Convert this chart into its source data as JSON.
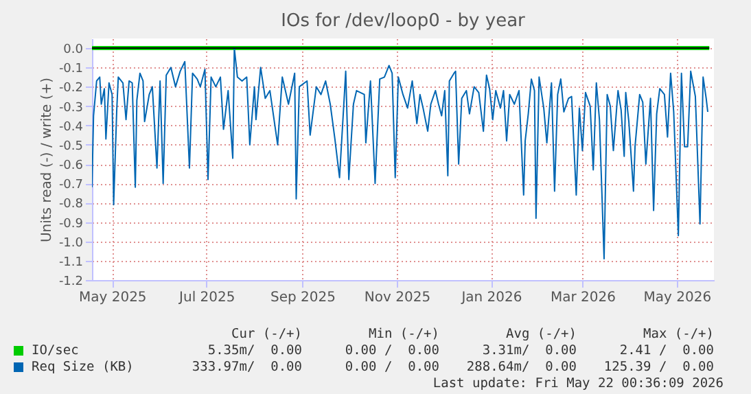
{
  "chart_data": {
    "type": "line",
    "title": "IOs for /dev/loop0 - by year",
    "ylabel": "Units read (-) / write (+)",
    "xlim": [
      "2025-04-18",
      "2026-05-25"
    ],
    "xticks": [
      {
        "value": "2025-05-01",
        "label": "May 2025"
      },
      {
        "value": "2025-07-01",
        "label": "Jul 2025"
      },
      {
        "value": "2025-09-01",
        "label": "Sep 2025"
      },
      {
        "value": "2025-11-01",
        "label": "Nov 2025"
      },
      {
        "value": "2026-01-01",
        "label": "Jan 2026"
      },
      {
        "value": "2026-03-01",
        "label": "Mar 2026"
      },
      {
        "value": "2026-05-01",
        "label": "May 2026"
      }
    ],
    "ylim": [
      -1.2,
      0.05
    ],
    "yticks": [
      {
        "value": 0,
        "label": "0.0"
      },
      -0.1,
      -0.2,
      -0.3,
      -0.4,
      -0.5,
      -0.6,
      -0.7,
      -0.8,
      -0.9,
      {
        "value": -1,
        "label": "-1.0"
      },
      -1.1,
      -1.2
    ],
    "grid": true,
    "legend": "bottom",
    "series": [
      {
        "name": "IO/sec",
        "color": "#00cc00",
        "x": [
          "2025-04-18",
          "2026-05-22"
        ],
        "values": [
          0,
          0
        ]
      },
      {
        "name": "Req Size (KB)",
        "color": "#0066b3",
        "x": [
          "2025-04-18",
          "2025-04-19",
          "2025-04-21",
          "2025-04-23",
          "2025-04-24",
          "2025-04-26",
          "2025-04-27",
          "2025-04-29",
          "2025-05-01",
          "2025-05-02",
          "2025-05-04",
          "2025-05-05",
          "2025-05-08",
          "2025-05-10",
          "2025-05-12",
          "2025-05-14",
          "2025-05-16",
          "2025-05-17",
          "2025-05-19",
          "2025-05-21",
          "2025-05-22",
          "2025-05-25",
          "2025-05-27",
          "2025-05-30",
          "2025-06-01",
          "2025-06-03",
          "2025-06-05",
          "2025-06-08",
          "2025-06-11",
          "2025-06-14",
          "2025-06-17",
          "2025-06-20",
          "2025-06-22",
          "2025-06-25",
          "2025-06-27",
          "2025-06-30",
          "2025-07-02",
          "2025-07-04",
          "2025-07-07",
          "2025-07-10",
          "2025-07-12",
          "2025-07-15",
          "2025-07-18",
          "2025-07-19",
          "2025-07-21",
          "2025-07-24",
          "2025-07-27",
          "2025-07-29",
          "2025-08-01",
          "2025-08-02",
          "2025-08-05",
          "2025-08-08",
          "2025-08-11",
          "2025-08-16",
          "2025-08-19",
          "2025-08-23",
          "2025-08-27",
          "2025-08-28",
          "2025-08-30",
          "2025-09-04",
          "2025-09-06",
          "2025-09-10",
          "2025-09-13",
          "2025-09-16",
          "2025-09-19",
          "2025-09-22",
          "2025-09-25",
          "2025-09-28",
          "2025-09-29",
          "2025-10-01",
          "2025-10-04",
          "2025-10-06",
          "2025-10-11",
          "2025-10-12",
          "2025-10-15",
          "2025-10-18",
          "2025-10-21",
          "2025-10-24",
          "2025-10-27",
          "2025-10-29",
          "2025-10-31",
          "2025-11-02",
          "2025-11-05",
          "2025-11-08",
          "2025-11-11",
          "2025-11-14",
          "2025-11-16",
          "2025-11-18",
          "2025-11-21",
          "2025-11-23",
          "2025-11-26",
          "2025-11-28",
          "2025-11-30",
          "2025-12-02",
          "2025-12-04",
          "2025-12-05",
          "2025-12-08",
          "2025-12-09",
          "2025-12-11",
          "2025-12-13",
          "2025-12-16",
          "2025-12-18",
          "2025-12-21",
          "2025-12-24",
          "2025-12-27",
          "2025-12-29",
          "2025-12-31",
          "2026-01-02",
          "2026-01-04",
          "2026-01-07",
          "2026-01-09",
          "2026-01-11",
          "2026-01-13",
          "2026-01-16",
          "2026-01-19",
          "2026-01-22",
          "2026-01-23",
          "2026-01-25",
          "2026-01-27",
          "2026-01-29",
          "2026-01-30",
          "2026-02-01",
          "2026-02-04",
          "2026-02-06",
          "2026-02-09",
          "2026-02-11",
          "2026-02-13",
          "2026-02-15",
          "2026-02-17",
          "2026-02-20",
          "2026-02-22",
          "2026-02-25",
          "2026-02-27",
          "2026-03-01",
          "2026-03-03",
          "2026-03-06",
          "2026-03-08",
          "2026-03-10",
          "2026-03-12",
          "2026-03-15",
          "2026-03-17",
          "2026-03-19",
          "2026-03-21",
          "2026-03-24",
          "2026-03-26",
          "2026-03-28",
          "2026-03-29",
          "2026-03-31",
          "2026-04-03",
          "2026-04-04",
          "2026-04-07",
          "2026-04-09",
          "2026-04-11",
          "2026-04-14",
          "2026-04-16",
          "2026-04-18",
          "2026-04-20",
          "2026-04-23",
          "2026-04-25",
          "2026-04-27",
          "2026-04-29",
          "2026-05-02",
          "2026-05-04",
          "2026-05-06",
          "2026-05-08",
          "2026-05-10",
          "2026-05-13",
          "2026-05-16",
          "2026-05-18",
          "2026-05-20",
          "2026-05-21"
        ],
        "values": [
          -0.72,
          -0.35,
          -0.17,
          -0.15,
          -0.29,
          -0.21,
          -0.47,
          -0.18,
          -0.24,
          -0.81,
          -0.32,
          -0.15,
          -0.18,
          -0.37,
          -0.17,
          -0.18,
          -0.72,
          -0.27,
          -0.13,
          -0.17,
          -0.38,
          -0.24,
          -0.2,
          -0.62,
          -0.17,
          -0.7,
          -0.14,
          -0.1,
          -0.2,
          -0.12,
          -0.07,
          -0.62,
          -0.13,
          -0.16,
          -0.2,
          -0.11,
          -0.68,
          -0.15,
          -0.2,
          -0.15,
          -0.42,
          -0.22,
          -0.57,
          0,
          -0.15,
          -0.17,
          -0.15,
          -0.5,
          -0.2,
          -0.37,
          -0.1,
          -0.26,
          -0.22,
          -0.5,
          -0.15,
          -0.29,
          -0.13,
          -0.78,
          -0.2,
          -0.17,
          -0.45,
          -0.2,
          -0.24,
          -0.17,
          -0.29,
          -0.47,
          -0.67,
          -0.26,
          -0.12,
          -0.68,
          -0.29,
          -0.22,
          -0.24,
          -0.49,
          -0.17,
          -0.7,
          -0.16,
          -0.15,
          -0.09,
          -0.13,
          -0.67,
          -0.15,
          -0.24,
          -0.31,
          -0.17,
          -0.39,
          -0.24,
          -0.31,
          -0.43,
          -0.29,
          -0.22,
          -0.29,
          -0.35,
          -0.22,
          -0.66,
          -0.17,
          -0.13,
          -0.12,
          -0.6,
          -0.26,
          -0.22,
          -0.34,
          -0.2,
          -0.23,
          -0.43,
          -0.14,
          -0.21,
          -0.37,
          -0.22,
          -0.31,
          -0.22,
          -0.48,
          -0.24,
          -0.29,
          -0.22,
          -0.76,
          -0.48,
          -0.34,
          -0.16,
          -0.22,
          -0.88,
          -0.15,
          -0.31,
          -0.49,
          -0.18,
          -0.74,
          -0.24,
          -0.16,
          -0.33,
          -0.26,
          -0.25,
          -0.76,
          -0.31,
          -0.53,
          -0.23,
          -0.3,
          -0.63,
          -0.18,
          -0.37,
          -1.09,
          -0.24,
          -0.3,
          -0.53,
          -0.22,
          -0.32,
          -0.56,
          -0.23,
          -0.38,
          -0.74,
          -0.51,
          -0.24,
          -0.28,
          -0.6,
          -0.26,
          -0.84,
          -0.34,
          -0.21,
          -0.24,
          -0.46,
          -0.13,
          -0.33,
          -0.97,
          -0.13,
          -0.51,
          -0.51,
          -0.12,
          -0.25,
          -0.91,
          -0.15,
          -0.26,
          -0.33
        ]
      },
      {
        "color": "#000000",
        "x": [
          "2025-04-18",
          "2026-05-22"
        ],
        "values": [
          0,
          0
        ]
      }
    ],
    "annotations": [
      "Cur (-/+)",
      "Min (-/+)",
      "Avg (-/+)",
      "Max (-/+)",
      "5.35m/  0.00",
      "0.00 /  0.00",
      "3.31m/  0.00",
      "2.41 /  0.00",
      "333.97m/  0.00",
      "0.00 /  0.00",
      "288.64m/  0.00",
      "125.39 /  0.00",
      "Last update: Fri May 22 00:36:09 2026"
    ]
  }
}
